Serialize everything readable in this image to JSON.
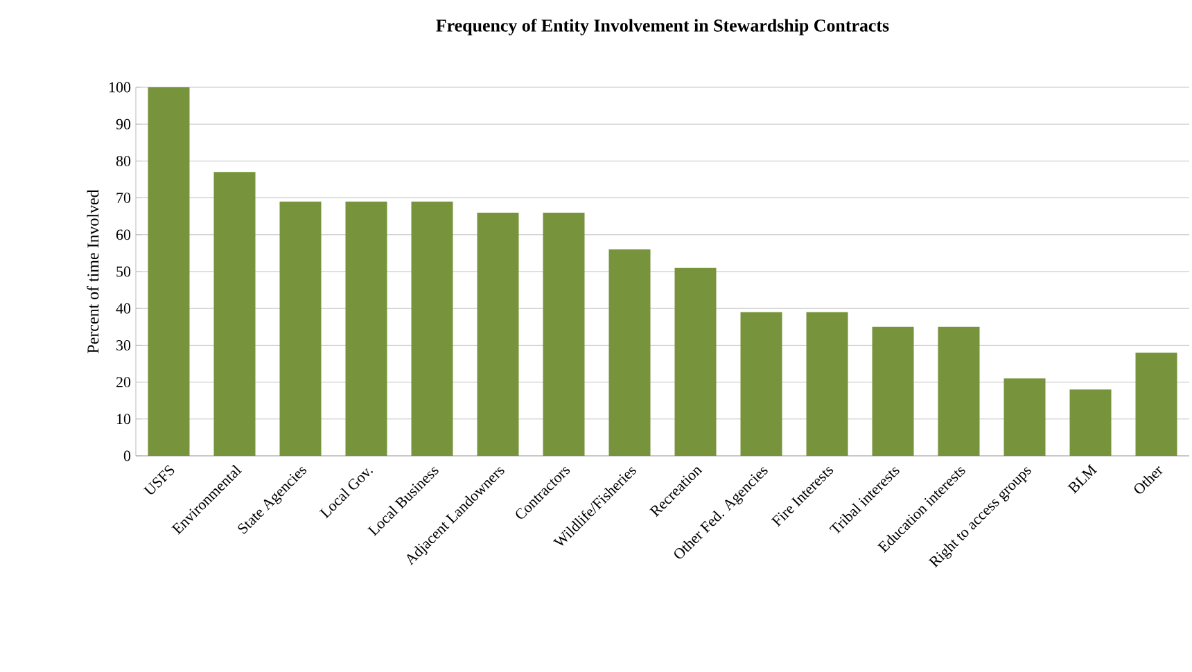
{
  "chart_data": {
    "type": "bar",
    "title": "Frequency of Entity Involvement in Stewardship Contracts",
    "ylabel": "Percent of time Involved",
    "categories": [
      "USFS",
      "Environmental",
      "State Agencies",
      "Local Gov.",
      "Local Business",
      "Adjacent Landowners",
      "Contractors",
      "Wildlife/Fisheries",
      "Recreation",
      "Other Fed. Agencies",
      "Fire Interests",
      "Tribal interests",
      "Education interests",
      "Right to access groups",
      "BLM",
      "Other"
    ],
    "values": [
      100,
      77,
      69,
      69,
      69,
      66,
      66,
      56,
      51,
      39,
      39,
      35,
      35,
      21,
      18,
      28
    ],
    "color": "#77933c",
    "ylim": [
      0,
      100
    ],
    "yticks": [
      0,
      10,
      20,
      30,
      40,
      50,
      60,
      70,
      80,
      90,
      100
    ],
    "grid": "y"
  }
}
